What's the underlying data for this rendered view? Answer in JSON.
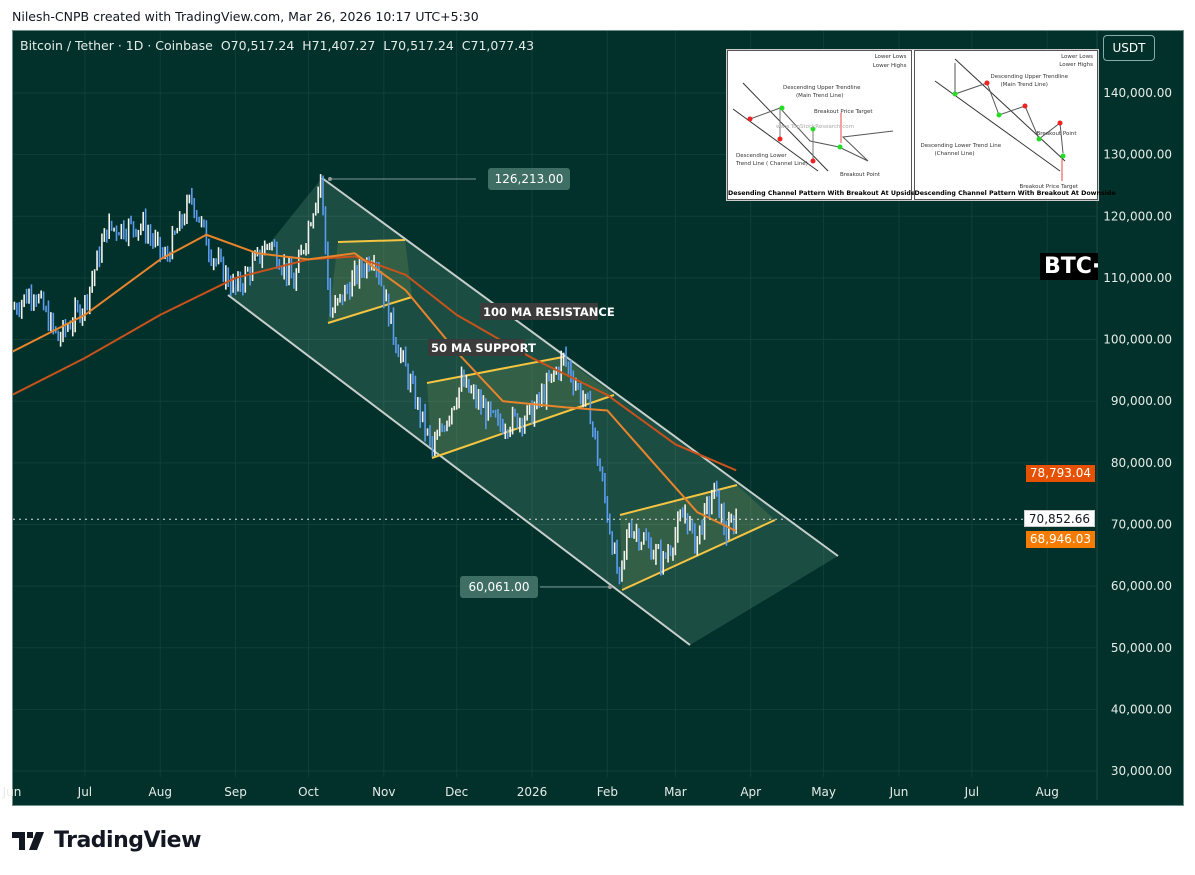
{
  "credit": "Nilesh-CNPB created with TradingView.com, Mar 26, 2026 10:17 UTC+5:30",
  "legend": {
    "symbol": "Bitcoin / Tether · 1D · Coinbase",
    "open": "O70,517.24",
    "high": "H71,407.27",
    "low": "L70,517.24",
    "close": "C71,077.43"
  },
  "currency_button": "USDT",
  "logo_text": "TradingView",
  "symbol_badge": "BTC·",
  "colors": {
    "background": "#01312a",
    "up": "#f4f4ee",
    "down": "#5b9cf0",
    "ma50": "#e8842c",
    "ma100": "#c9521c",
    "flag": "#f5c542",
    "channel": "#c7cfcc"
  },
  "price_axis": {
    "labels": [
      "140,000.00",
      "130,000.00",
      "120,000.00",
      "110,000.00",
      "100,000.00",
      "90,000.00",
      "80,000.00",
      "70,000.00",
      "60,000.00",
      "50,000.00",
      "40,000.00",
      "30,000.00"
    ]
  },
  "price_tags": {
    "ma100": "78,793.04",
    "last": "70,852.66",
    "ma50": "68,946.03"
  },
  "time_axis": [
    {
      "date": "2025-06-01",
      "label": "Jun"
    },
    {
      "date": "2025-07-01",
      "label": "Jul"
    },
    {
      "date": "2025-08-01",
      "label": "Aug"
    },
    {
      "date": "2025-09-01",
      "label": "Sep"
    },
    {
      "date": "2025-10-01",
      "label": "Oct"
    },
    {
      "date": "2025-11-01",
      "label": "Nov"
    },
    {
      "date": "2025-12-01",
      "label": "Dec"
    },
    {
      "date": "2026-01-01",
      "label": "2026"
    },
    {
      "date": "2026-02-01",
      "label": "Feb"
    },
    {
      "date": "2026-03-01",
      "label": "Mar"
    },
    {
      "date": "2026-04-01",
      "label": "Apr"
    },
    {
      "date": "2026-05-01",
      "label": "May"
    },
    {
      "date": "2026-06-01",
      "label": "Jun"
    },
    {
      "date": "2026-07-01",
      "label": "Jul"
    },
    {
      "date": "2026-08-01",
      "label": "Aug"
    }
  ],
  "annotations": {
    "high_label": "126,213.00",
    "low_label": "60,061.00",
    "ma100_note": "100 MA RESISTANCE",
    "ma50_note": "50 MA SUPPORT"
  },
  "inset": {
    "legend_low": "Lower Lows",
    "legend_high": "Lower Highs",
    "left": {
      "upper": "Descending Upper Trendline",
      "upper_sub": "(Main Trend Line)",
      "target": "Breakout Price Target",
      "lower": "Descending Lower",
      "lower_sub": "Trend Line ( Channel Line)",
      "breakout": "Breakout Point",
      "watermark": "www.TopStockResearch.com",
      "caption": "Desending Channel Pattern With Breakout At Upside"
    },
    "right": {
      "upper": "Descending Upper Trendline",
      "upper_sub": "(Main Trend Line)",
      "breakout": "Breakout Point",
      "lower": "Descending Lower Trend Line",
      "lower_sub": "(Channel Line)",
      "target": "Breakout Price Target",
      "caption": "Descending Channel Pattern With Breakout At Downside"
    }
  },
  "chart_data": {
    "type": "candlestick",
    "y_range": [
      30000,
      145000
    ],
    "price_path": [
      [
        "2025-06-01",
        105000
      ],
      [
        "2025-06-10",
        108000
      ],
      [
        "2025-06-20",
        100000
      ],
      [
        "2025-07-01",
        106000
      ],
      [
        "2025-07-10",
        118000
      ],
      [
        "2025-07-25",
        118500
      ],
      [
        "2025-08-03",
        113000
      ],
      [
        "2025-08-14",
        123000
      ],
      [
        "2025-08-22",
        114000
      ],
      [
        "2025-09-01",
        108000
      ],
      [
        "2025-09-15",
        116000
      ],
      [
        "2025-09-25",
        109000
      ],
      [
        "2025-10-06",
        126213
      ],
      [
        "2025-10-10",
        104000
      ],
      [
        "2025-10-20",
        110000
      ],
      [
        "2025-10-28",
        114000
      ],
      [
        "2025-11-05",
        101000
      ],
      [
        "2025-11-21",
        82000
      ],
      [
        "2025-12-03",
        93000
      ],
      [
        "2025-12-18",
        86000
      ],
      [
        "2026-01-01",
        88000
      ],
      [
        "2026-01-14",
        97000
      ],
      [
        "2026-01-25",
        88000
      ],
      [
        "2026-02-05",
        62500
      ],
      [
        "2026-02-06",
        60061
      ],
      [
        "2026-02-10",
        70000
      ],
      [
        "2026-02-24",
        64000
      ],
      [
        "2026-03-05",
        72000
      ],
      [
        "2026-03-09",
        67000
      ],
      [
        "2026-03-17",
        75500
      ],
      [
        "2026-03-22",
        68500
      ],
      [
        "2026-03-26",
        71077
      ]
    ],
    "ma50": [
      [
        "2025-06-01",
        98000
      ],
      [
        "2025-07-01",
        104000
      ],
      [
        "2025-08-01",
        113000
      ],
      [
        "2025-08-20",
        117000
      ],
      [
        "2025-09-10",
        114000
      ],
      [
        "2025-10-01",
        113000
      ],
      [
        "2025-10-20",
        114000
      ],
      [
        "2025-11-10",
        108000
      ],
      [
        "2025-12-01",
        98000
      ],
      [
        "2025-12-20",
        90000
      ],
      [
        "2026-01-15",
        89000
      ],
      [
        "2026-02-01",
        88500
      ],
      [
        "2026-02-20",
        80000
      ],
      [
        "2026-03-10",
        72000
      ],
      [
        "2026-03-26",
        68946
      ]
    ],
    "ma100": [
      [
        "2025-06-01",
        91000
      ],
      [
        "2025-07-01",
        97000
      ],
      [
        "2025-08-01",
        104000
      ],
      [
        "2025-09-01",
        110000
      ],
      [
        "2025-10-01",
        113000
      ],
      [
        "2025-10-20",
        113500
      ],
      [
        "2025-11-10",
        110500
      ],
      [
        "2025-12-01",
        104000
      ],
      [
        "2026-01-01",
        97000
      ],
      [
        "2026-02-01",
        91000
      ],
      [
        "2026-03-01",
        83000
      ],
      [
        "2026-03-26",
        78793
      ]
    ],
    "last_price": 70852.66
  }
}
